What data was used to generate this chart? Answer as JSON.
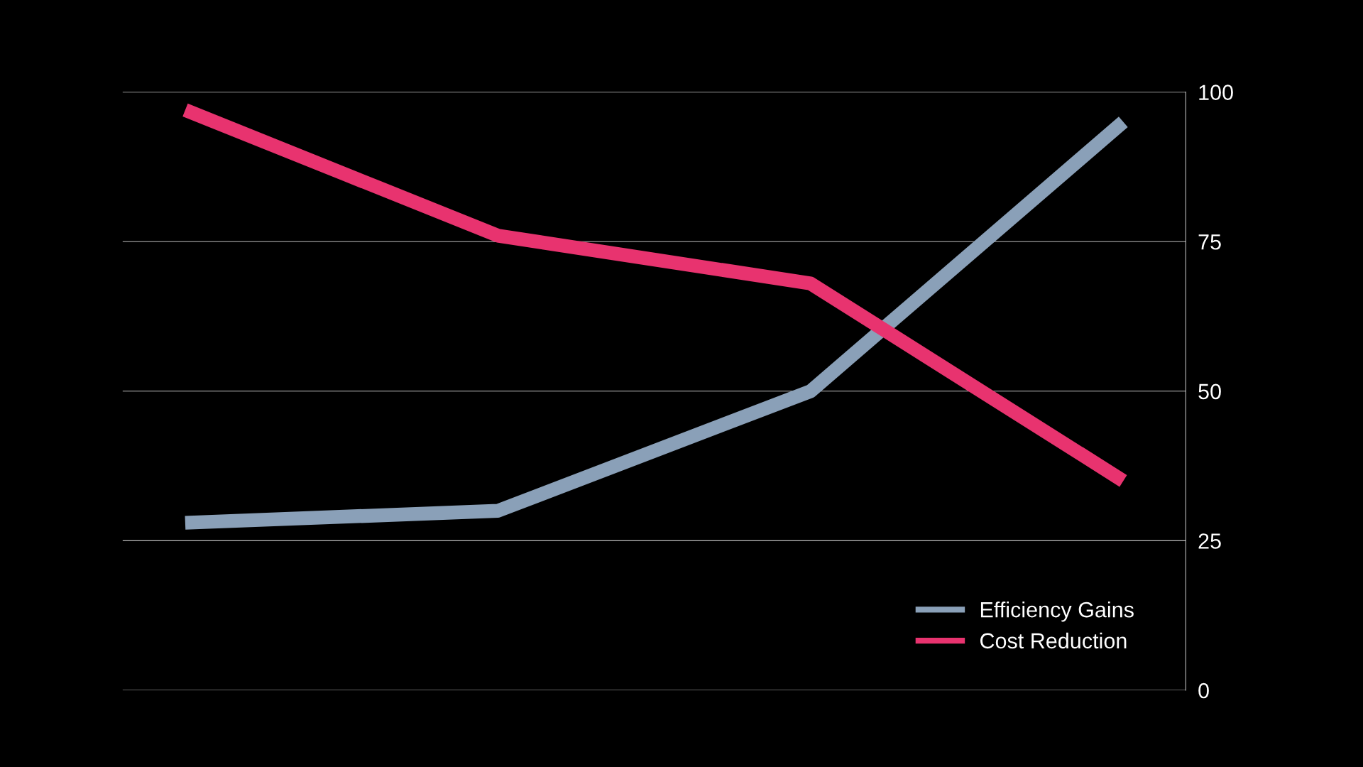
{
  "chart_data": {
    "type": "line",
    "categories": [
      null,
      null,
      null,
      null
    ],
    "series": [
      {
        "name": "Efficiency Gains",
        "color": "#8aa0b8",
        "values": [
          28,
          30,
          50,
          95
        ]
      },
      {
        "name": "Cost Reduction",
        "color": "#e8336f",
        "values": [
          97,
          76,
          68,
          35
        ]
      }
    ],
    "ylim": [
      0,
      100
    ],
    "yticks": [
      0,
      25,
      50,
      75,
      100
    ],
    "grid": "y",
    "legend": "bottom right",
    "marker": "none",
    "line_style": "solid"
  }
}
